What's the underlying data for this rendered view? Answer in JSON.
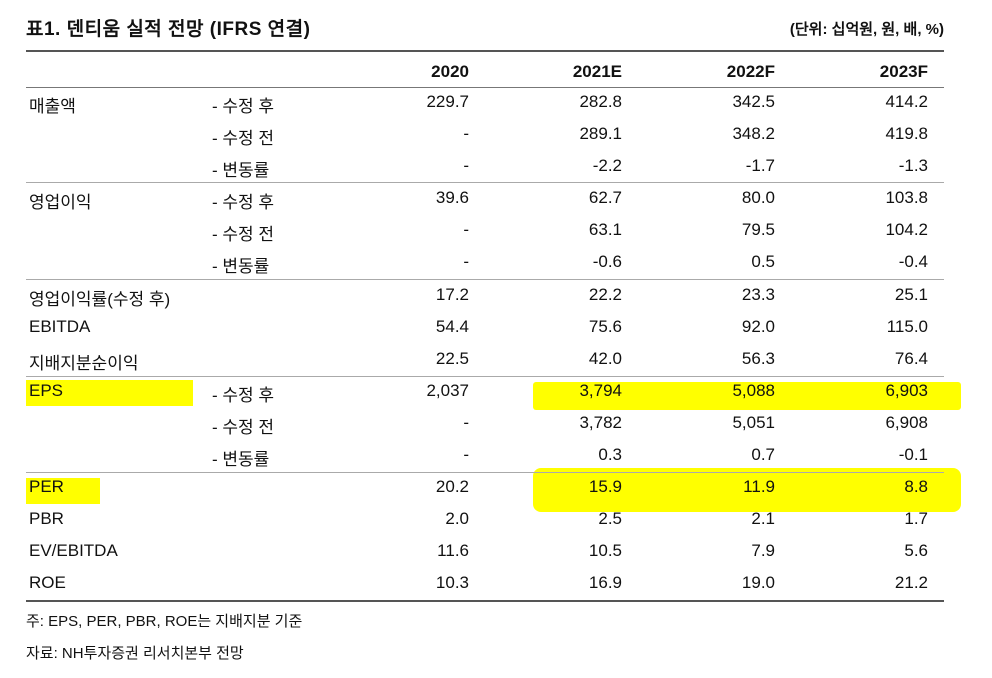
{
  "title": "표1. 덴티움 실적 전망 (IFRS 연결)",
  "unit": "(단위: 십억원, 원, 배, %)",
  "columns": [
    "2020",
    "2021E",
    "2022F",
    "2023F"
  ],
  "rows": [
    {
      "label": "매출액",
      "sub": "- 수정 후",
      "values": [
        "229.7",
        "282.8",
        "342.5",
        "414.2"
      ]
    },
    {
      "label": "",
      "sub": "- 수정 전",
      "values": [
        "-",
        "289.1",
        "348.2",
        "419.8"
      ]
    },
    {
      "label": "",
      "sub": "- 변동률",
      "values": [
        "-",
        "-2.2",
        "-1.7",
        "-1.3"
      ]
    },
    {
      "label": "영업이익",
      "sub": "- 수정 후",
      "values": [
        "39.6",
        "62.7",
        "80.0",
        "103.8"
      ]
    },
    {
      "label": "",
      "sub": "- 수정 전",
      "values": [
        "-",
        "63.1",
        "79.5",
        "104.2"
      ]
    },
    {
      "label": "",
      "sub": "- 변동률",
      "values": [
        "-",
        "-0.6",
        "0.5",
        "-0.4"
      ]
    },
    {
      "label": "영업이익률(수정 후)",
      "sub": "",
      "values": [
        "17.2",
        "22.2",
        "23.3",
        "25.1"
      ]
    },
    {
      "label": "EBITDA",
      "sub": "",
      "values": [
        "54.4",
        "75.6",
        "92.0",
        "115.0"
      ]
    },
    {
      "label": "지배지분순이익",
      "sub": "",
      "values": [
        "22.5",
        "42.0",
        "56.3",
        "76.4"
      ]
    },
    {
      "label": "EPS",
      "sub": "- 수정 후",
      "values": [
        "2,037",
        "3,794",
        "5,088",
        "6,903"
      ]
    },
    {
      "label": "",
      "sub": "- 수정 전",
      "values": [
        "-",
        "3,782",
        "5,051",
        "6,908"
      ]
    },
    {
      "label": "",
      "sub": "- 변동률",
      "values": [
        "-",
        "0.3",
        "0.7",
        "-0.1"
      ]
    },
    {
      "label": "PER",
      "sub": "",
      "values": [
        "20.2",
        "15.9",
        "11.9",
        "8.8"
      ]
    },
    {
      "label": "PBR",
      "sub": "",
      "values": [
        "2.0",
        "2.5",
        "2.1",
        "1.7"
      ]
    },
    {
      "label": "EV/EBITDA",
      "sub": "",
      "values": [
        "11.6",
        "10.5",
        "7.9",
        "5.6"
      ]
    },
    {
      "label": "ROE",
      "sub": "",
      "values": [
        "10.3",
        "16.9",
        "19.0",
        "21.2"
      ]
    }
  ],
  "notes": [
    "주: EPS, PER, PBR, ROE는 지배지분 기준",
    "자료: NH투자증권 리서치본부 전망"
  ],
  "highlight_color": "#ffff00"
}
